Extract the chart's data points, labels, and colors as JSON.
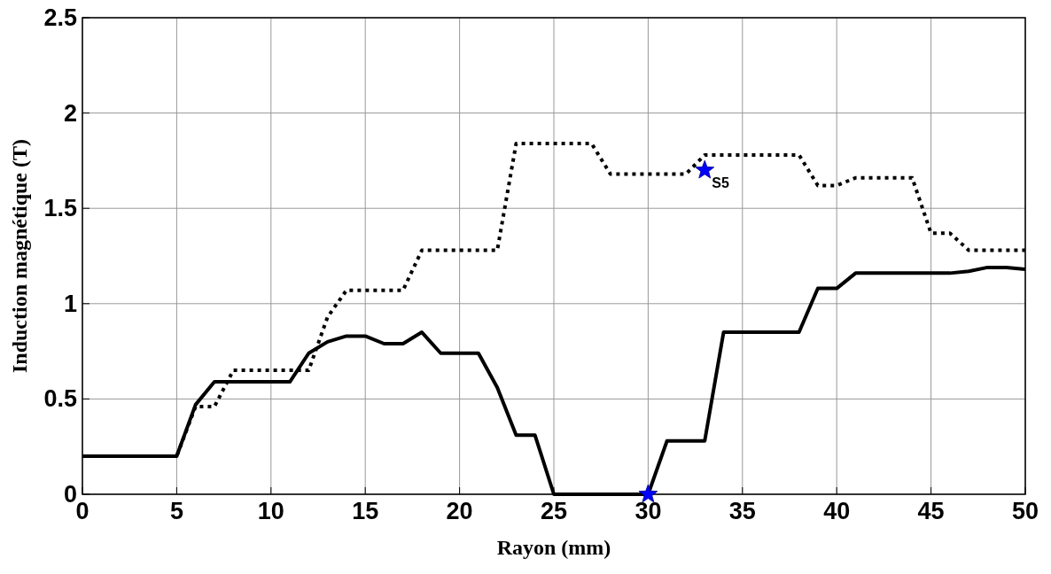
{
  "chart_data": {
    "type": "line",
    "xlabel": "Rayon (mm)",
    "ylabel": "Induction magnétique (T)",
    "x": [
      0,
      1,
      2,
      3,
      4,
      5,
      6,
      7,
      8,
      9,
      10,
      11,
      12,
      13,
      14,
      15,
      16,
      17,
      18,
      19,
      20,
      21,
      22,
      23,
      24,
      25,
      26,
      27,
      28,
      29,
      30,
      31,
      32,
      33,
      34,
      35,
      36,
      37,
      38,
      39,
      40,
      41,
      42,
      43,
      44,
      45,
      46,
      47,
      48,
      49,
      50
    ],
    "series": [
      {
        "color": "#000000",
        "line_style": "solid",
        "values": [
          0.2,
          0.2,
          0.2,
          0.2,
          0.2,
          0.2,
          0.47,
          0.59,
          0.59,
          0.59,
          0.59,
          0.59,
          0.74,
          0.8,
          0.83,
          0.83,
          0.79,
          0.79,
          0.85,
          0.74,
          0.74,
          0.74,
          0.56,
          0.31,
          0.31,
          0,
          0,
          0,
          0,
          0,
          0,
          0.28,
          0.28,
          0.28,
          0.85,
          0.85,
          0.85,
          0.85,
          0.85,
          1.08,
          1.08,
          1.16,
          1.16,
          1.16,
          1.16,
          1.16,
          1.16,
          1.17,
          1.19,
          1.19,
          1.18
        ]
      },
      {
        "color": "#000000",
        "line_style": "dotted",
        "values": [
          0.2,
          0.2,
          0.2,
          0.2,
          0.2,
          0.2,
          0.46,
          0.46,
          0.65,
          0.65,
          0.65,
          0.65,
          0.65,
          0.93,
          1.07,
          1.07,
          1.07,
          1.07,
          1.28,
          1.28,
          1.28,
          1.28,
          1.28,
          1.84,
          1.84,
          1.84,
          1.84,
          1.84,
          1.68,
          1.68,
          1.68,
          1.68,
          1.68,
          1.78,
          1.78,
          1.78,
          1.78,
          1.78,
          1.78,
          1.62,
          1.62,
          1.66,
          1.66,
          1.66,
          1.66,
          1.37,
          1.37,
          1.28,
          1.28,
          1.28,
          1.28
        ]
      },
      {
        "type": "scatter",
        "color": "#0000ff",
        "marker": "star",
        "x": [
          30,
          33
        ],
        "values": [
          0,
          1.7
        ]
      }
    ],
    "annotations": [
      {
        "text": "S5",
        "x": 33,
        "y": 1.7
      }
    ],
    "xlim": [
      0,
      50
    ],
    "xticks": [
      0,
      5,
      10,
      15,
      20,
      25,
      30,
      35,
      40,
      45,
      50
    ],
    "ylim": [
      0,
      2.5
    ],
    "yticks": [
      0,
      0.5,
      1,
      1.5,
      2,
      2.5
    ],
    "grid": true
  }
}
